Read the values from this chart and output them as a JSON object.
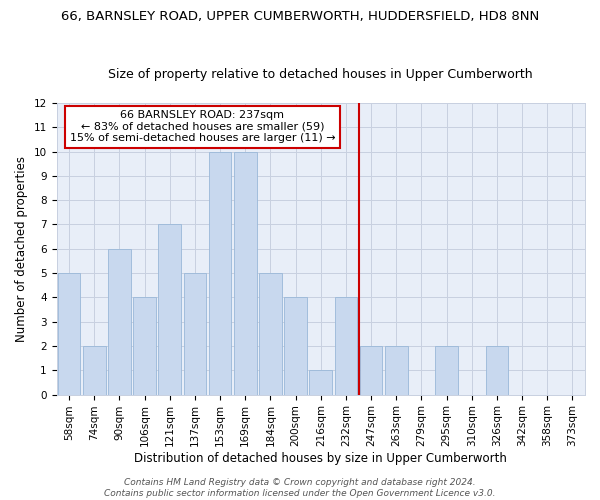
{
  "title": "66, BARNSLEY ROAD, UPPER CUMBERWORTH, HUDDERSFIELD, HD8 8NN",
  "subtitle": "Size of property relative to detached houses in Upper Cumberworth",
  "xlabel": "Distribution of detached houses by size in Upper Cumberworth",
  "ylabel": "Number of detached properties",
  "categories": [
    "58sqm",
    "74sqm",
    "90sqm",
    "106sqm",
    "121sqm",
    "137sqm",
    "153sqm",
    "169sqm",
    "184sqm",
    "200sqm",
    "216sqm",
    "232sqm",
    "247sqm",
    "263sqm",
    "279sqm",
    "295sqm",
    "310sqm",
    "326sqm",
    "342sqm",
    "358sqm",
    "373sqm"
  ],
  "values": [
    5,
    2,
    6,
    4,
    7,
    5,
    10,
    10,
    5,
    4,
    1,
    4,
    2,
    2,
    0,
    2,
    0,
    2,
    0,
    0,
    0
  ],
  "bar_color": "#c8d8ee",
  "bar_edge_color": "#9ab8d8",
  "red_line_after_index": 11,
  "ylim": [
    0,
    12
  ],
  "yticks": [
    0,
    1,
    2,
    3,
    4,
    5,
    6,
    7,
    8,
    9,
    10,
    11,
    12
  ],
  "annotation_text": "66 BARNSLEY ROAD: 237sqm\n← 83% of detached houses are smaller (59)\n15% of semi-detached houses are larger (11) →",
  "annotation_box_facecolor": "#ffffff",
  "annotation_box_edgecolor": "#cc0000",
  "footer_text": "Contains HM Land Registry data © Crown copyright and database right 2024.\nContains public sector information licensed under the Open Government Licence v3.0.",
  "fig_facecolor": "#ffffff",
  "axes_facecolor": "#e8eef8",
  "grid_color": "#c8d0e0",
  "title_fontsize": 9.5,
  "subtitle_fontsize": 9,
  "tick_fontsize": 7.5,
  "ylabel_fontsize": 8.5,
  "xlabel_fontsize": 8.5,
  "annot_fontsize": 8,
  "footer_fontsize": 6.5
}
